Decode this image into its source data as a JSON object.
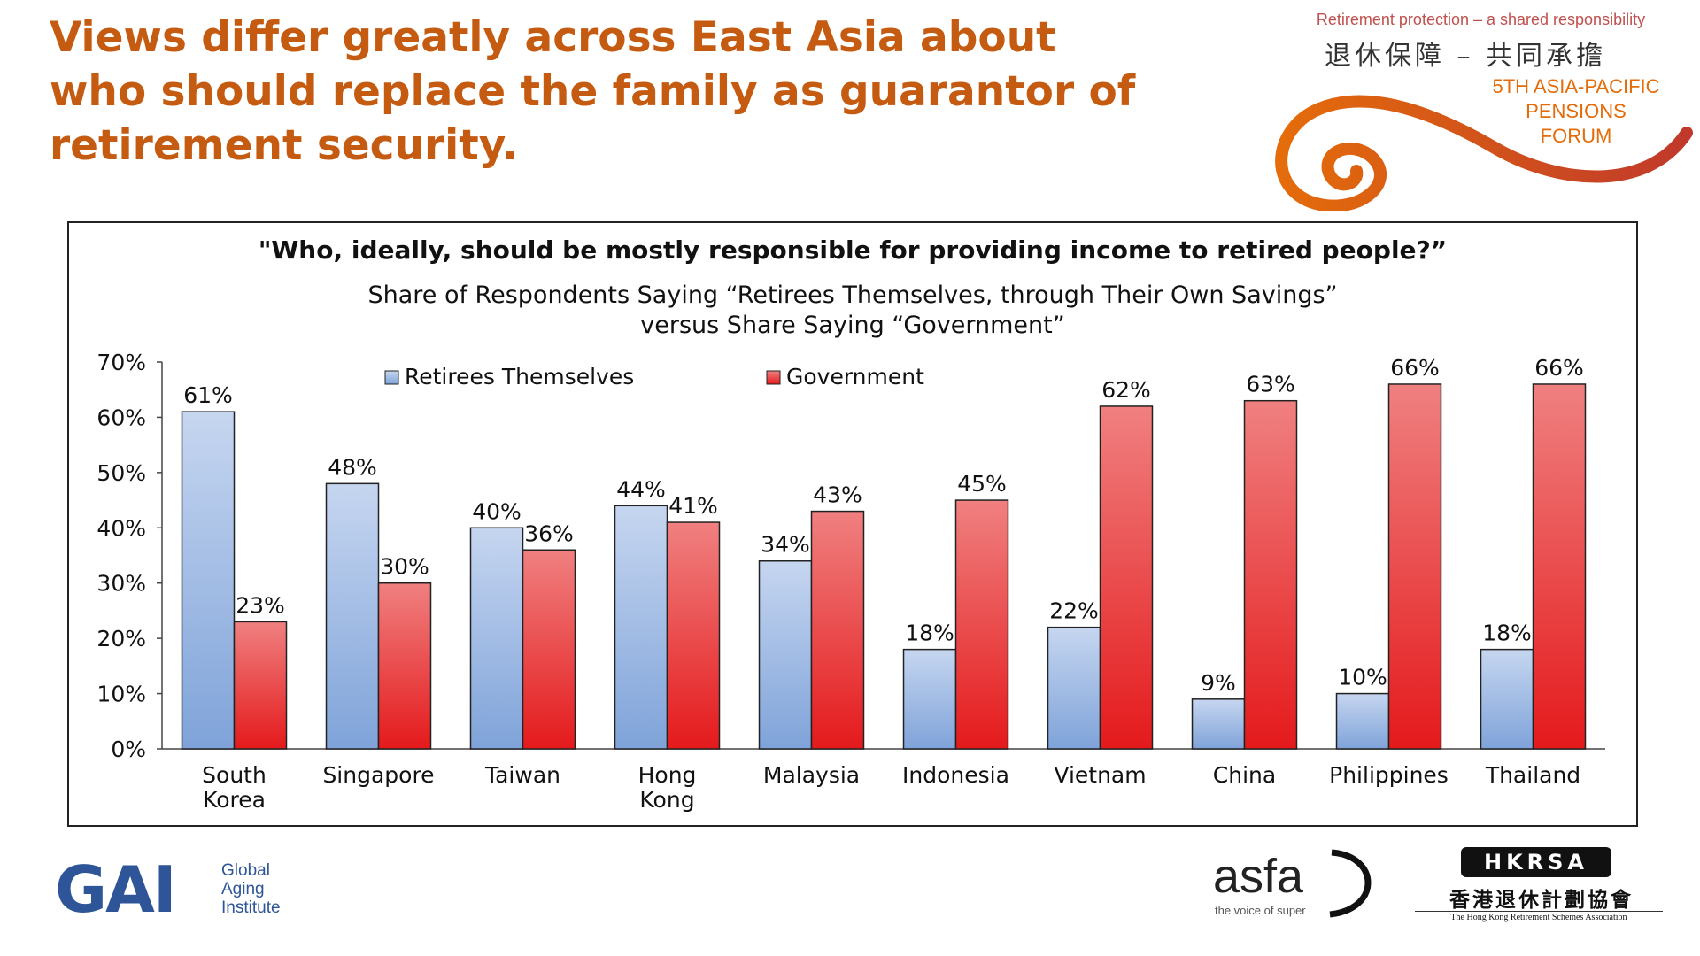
{
  "slide": {
    "title": "Views differ greatly across East Asia about who should replace the family as guarantor of retirement security."
  },
  "forum_logo": {
    "tagline": "Retirement protection – a shared responsibility",
    "chinese": "退休保障 – 共同承擔",
    "name_line1": "5TH ASIA-PACIFIC",
    "name_line2": "PENSIONS",
    "name_line3": "FORUM"
  },
  "footer": {
    "gai": {
      "mark": "GAI",
      "line1": "Global",
      "line2": "Aging",
      "line3": "Institute"
    },
    "asfa": {
      "mark": "asfa",
      "tagline": "the voice of super"
    },
    "hkrsa": {
      "badge": "HKRSA",
      "chinese": "香港退休計劃協會",
      "english": "The Hong Kong Retirement Schemes Association"
    }
  },
  "colors": {
    "title": "#c55a11",
    "series_retirees": "#7fa3d9",
    "series_government": "#e41a1c"
  },
  "chart_data": {
    "type": "bar",
    "title": "\"Who, ideally, should be mostly responsible for providing income to retired people?”",
    "subtitle_line1": "Share of Respondents Saying “Retirees Themselves, through Their Own Savings”",
    "subtitle_line2": "versus Share Saying “Government”",
    "categories": [
      [
        "South",
        "Korea"
      ],
      [
        "Singapore"
      ],
      [
        "Taiwan"
      ],
      [
        "Hong",
        "Kong"
      ],
      [
        "Malaysia"
      ],
      [
        "Indonesia"
      ],
      [
        "Vietnam"
      ],
      [
        "China"
      ],
      [
        "Philippines"
      ],
      [
        "Thailand"
      ]
    ],
    "series": [
      {
        "name": "Retirees Themselves",
        "values": [
          61,
          48,
          40,
          44,
          34,
          18,
          22,
          9,
          10,
          18
        ]
      },
      {
        "name": "Government",
        "values": [
          23,
          30,
          36,
          41,
          43,
          45,
          62,
          63,
          66,
          66
        ]
      }
    ],
    "ylim": [
      0,
      70
    ],
    "yticks": [
      0,
      10,
      20,
      30,
      40,
      50,
      60,
      70
    ],
    "value_suffix": "%",
    "grid": false,
    "legend_position": "top-left"
  }
}
